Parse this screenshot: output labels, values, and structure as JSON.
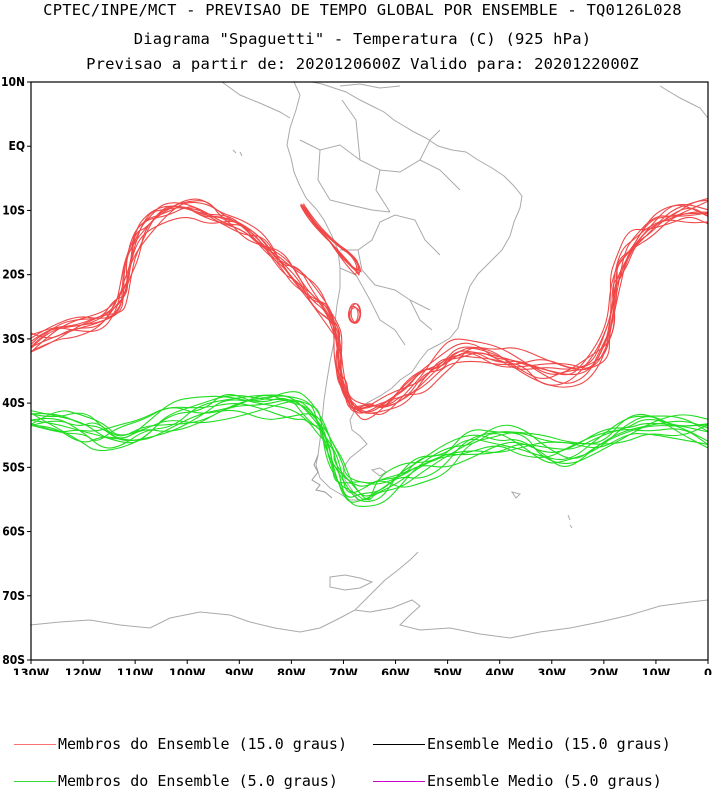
{
  "header": {
    "line1": "CPTEC/INPE/MCT - PREVISAO DE TEMPO GLOBAL POR ENSEMBLE - TQ0126L028",
    "line2": "Diagrama \"Spaguetti\" - Temperatura (C) (925 hPa)",
    "line3": "Previsao a partir de: 2020120600Z  Valido para: 2020122000Z"
  },
  "map": {
    "lon_range": [
      -130,
      0
    ],
    "lat_range": [
      -80,
      10
    ],
    "lat_ticks": [
      "10N",
      "EQ",
      "10S",
      "20S",
      "30S",
      "40S",
      "50S",
      "60S",
      "70S",
      "80S"
    ],
    "lon_ticks": [
      "130W",
      "120W",
      "110W",
      "100W",
      "90W",
      "80W",
      "70W",
      "60W",
      "50W",
      "40W",
      "30W",
      "20W",
      "10W",
      "0"
    ],
    "coast_color": "#aaaaaa"
  },
  "legend": {
    "items": [
      {
        "label": "Membros do Ensemble (15.0 graus)",
        "color": "#ff6060"
      },
      {
        "label": "Ensemble Medio (15.0 graus)",
        "color": "#000000"
      },
      {
        "label": "Membros do Ensemble (5.0 graus)",
        "color": "#33dd33"
      },
      {
        "label": "Ensemble Medio (5.0 graus)",
        "color": "#cc00cc"
      }
    ]
  },
  "colors": {
    "red_members": "#f04848",
    "green_members": "#22dd22"
  }
}
